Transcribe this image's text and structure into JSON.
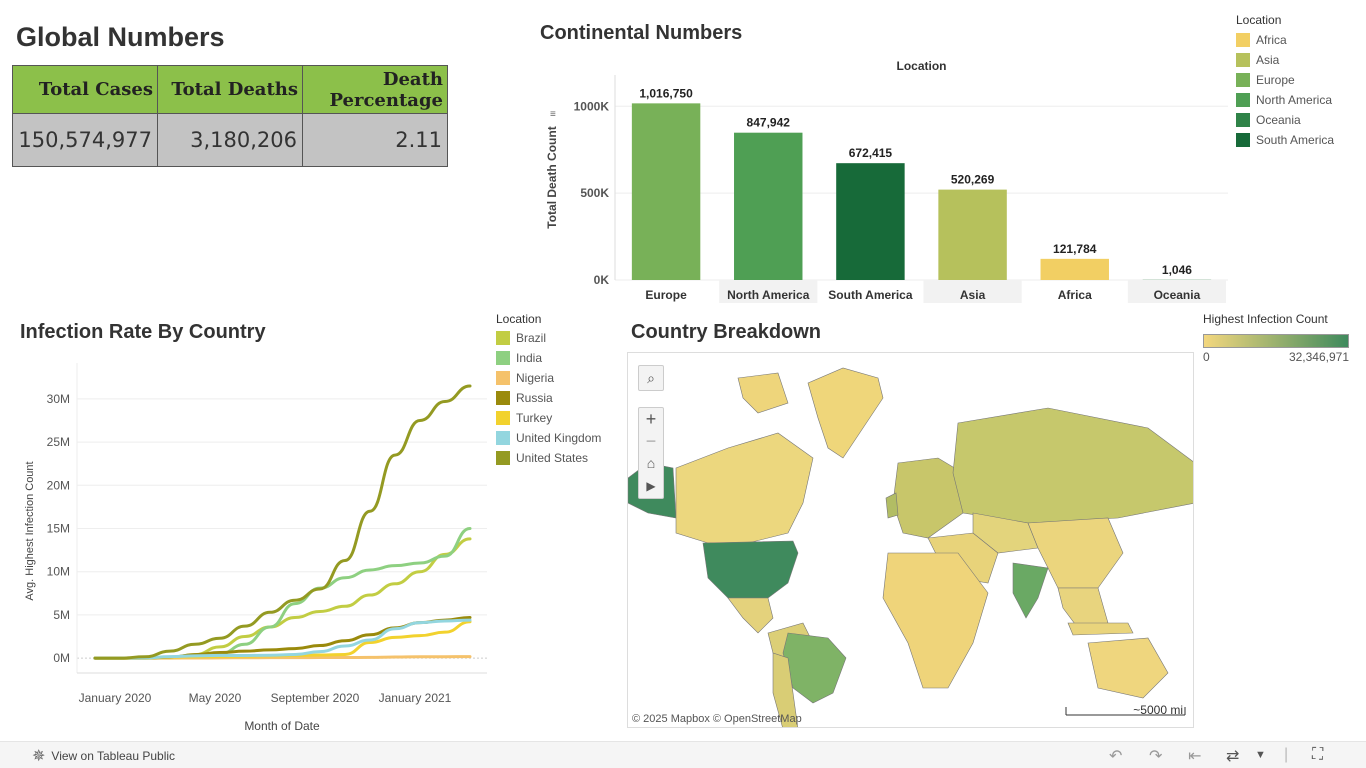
{
  "global": {
    "title": "Global Numbers",
    "headers": [
      "Total Cases",
      "Total Deaths",
      "Death Percentage"
    ],
    "header_death_line1": "Death",
    "header_death_line2": "Percentage",
    "values": [
      "150,574,977",
      "3,180,206",
      "2.11"
    ]
  },
  "continental": {
    "title": "Continental Numbers",
    "legend_title": "Location",
    "legend": [
      {
        "name": "Africa",
        "color": "#f2cf63"
      },
      {
        "name": "Asia",
        "color": "#b6c15c"
      },
      {
        "name": "Europe",
        "color": "#78b158"
      },
      {
        "name": "North America",
        "color": "#4f9f54"
      },
      {
        "name": "Oceania",
        "color": "#2f8348"
      },
      {
        "name": "South America",
        "color": "#176a39"
      }
    ]
  },
  "infection": {
    "title": "Infection Rate By Country",
    "legend_title": "Location",
    "legend": [
      {
        "name": "Brazil",
        "color": "#c2cd43"
      },
      {
        "name": "India",
        "color": "#8ed081"
      },
      {
        "name": "Nigeria",
        "color": "#f5c26b"
      },
      {
        "name": "Russia",
        "color": "#9a8a0c"
      },
      {
        "name": "Turkey",
        "color": "#f2d22e"
      },
      {
        "name": "United Kingdom",
        "color": "#93d6df"
      },
      {
        "name": "United States",
        "color": "#949a22"
      }
    ]
  },
  "map": {
    "title": "Country Breakdown",
    "legend_title": "Highest Infection Count",
    "legend_min": "0",
    "legend_max": "32,346,971",
    "attribution": "© 2025 Mapbox  © OpenStreetMap",
    "scale": "~5000 mi",
    "colors": {
      "low": "#f3d77e",
      "high": "#3f8a5d"
    }
  },
  "footer": {
    "view_label": "View on Tableau Public"
  },
  "chart_data": [
    {
      "type": "bar",
      "title": "Location",
      "xlabel": "",
      "ylabel": "Total Death Count",
      "categories": [
        "Europe",
        "North America",
        "South America",
        "Asia",
        "Africa",
        "Oceania"
      ],
      "values": [
        1016750,
        847942,
        672415,
        520269,
        121784,
        1046
      ],
      "value_labels": [
        "1,016,750",
        "847,942",
        "672,415",
        "520,269",
        "121,784",
        "1,046"
      ],
      "colors": [
        "#78b158",
        "#4f9f54",
        "#176a39",
        "#b6c15c",
        "#f2cf63",
        "#2f8348"
      ],
      "y_ticks": [
        0,
        500000,
        1000000
      ],
      "y_tick_labels": [
        "0K",
        "500K",
        "1000K"
      ],
      "ylim": [
        0,
        1180000
      ]
    },
    {
      "type": "line",
      "title": "",
      "xlabel": "Month of Date",
      "ylabel": "Avg. Highest Infection Count",
      "x": [
        "2020-01",
        "2020-02",
        "2020-03",
        "2020-04",
        "2020-05",
        "2020-06",
        "2020-07",
        "2020-08",
        "2020-09",
        "2020-10",
        "2020-11",
        "2020-12",
        "2021-01",
        "2021-02",
        "2021-03",
        "2021-04"
      ],
      "x_tick_labels": [
        "January 2020",
        "May 2020",
        "September 2020",
        "January 2021"
      ],
      "x_tick_index": [
        0,
        4,
        8,
        12
      ],
      "y_ticks": [
        0,
        5000000,
        10000000,
        15000000,
        20000000,
        25000000,
        30000000
      ],
      "y_tick_labels": [
        "0M",
        "5M",
        "10M",
        "15M",
        "20M",
        "25M",
        "30M"
      ],
      "ylim": [
        -800000,
        33000000
      ],
      "series": [
        {
          "name": "Brazil",
          "color": "#c2cd43",
          "values": [
            0,
            0,
            10000,
            80000,
            400000,
            1300000,
            2500000,
            3600000,
            4700000,
            5400000,
            6000000,
            7300000,
            8600000,
            10000000,
            12000000,
            13800000
          ]
        },
        {
          "name": "India",
          "color": "#8ed081",
          "values": [
            0,
            0,
            2000,
            30000,
            150000,
            500000,
            1600000,
            3600000,
            6300000,
            8100000,
            9300000,
            10200000,
            10700000,
            11000000,
            11800000,
            15000000
          ]
        },
        {
          "name": "Nigeria",
          "color": "#f5c26b",
          "values": [
            0,
            0,
            0,
            1000,
            9000,
            25000,
            40000,
            52000,
            58000,
            62000,
            67000,
            80000,
            120000,
            150000,
            160000,
            165000
          ]
        },
        {
          "name": "Russia",
          "color": "#9a8a0c",
          "values": [
            0,
            0,
            2000,
            100000,
            400000,
            650000,
            800000,
            950000,
            1100000,
            1450000,
            2000000,
            2700000,
            3500000,
            4100000,
            4400000,
            4700000
          ]
        },
        {
          "name": "Turkey",
          "color": "#f2d22e",
          "values": [
            0,
            0,
            5000,
            120000,
            160000,
            190000,
            220000,
            260000,
            310000,
            360000,
            420000,
            1800000,
            2400000,
            2600000,
            3000000,
            4200000
          ]
        },
        {
          "name": "United Kingdom",
          "color": "#93d6df",
          "values": [
            0,
            0,
            20000,
            170000,
            260000,
            310000,
            300000,
            330000,
            420000,
            750000,
            1400000,
            2100000,
            3400000,
            4100000,
            4300000,
            4400000
          ]
        },
        {
          "name": "United States",
          "color": "#949a22",
          "values": [
            0,
            0,
            150000,
            800000,
            1600000,
            2300000,
            3700000,
            5300000,
            6700000,
            8000000,
            11300000,
            17000000,
            23500000,
            27500000,
            29700000,
            31500000
          ]
        }
      ]
    }
  ]
}
